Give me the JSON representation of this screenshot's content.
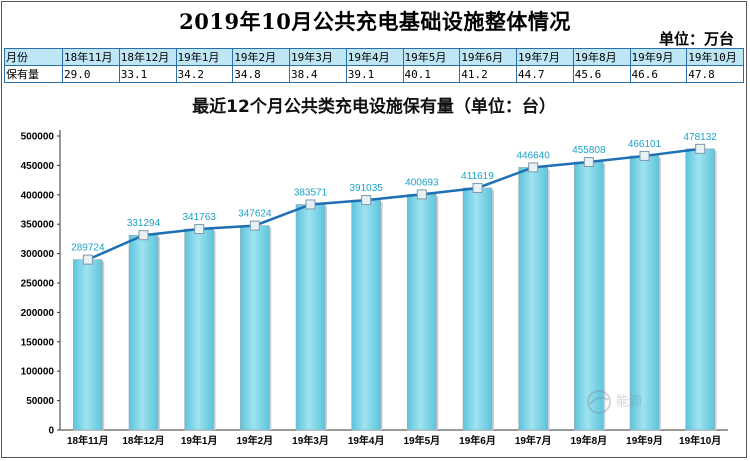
{
  "header": {
    "title": "2019年10月公共充电基础设施整体情况",
    "unit_note": "单位：万台"
  },
  "summary_table": {
    "row_label_month": "月份",
    "row_label_value": "保有量",
    "months": [
      "18年11月",
      "18年12月",
      "19年1月",
      "19年2月",
      "19年3月",
      "19年4月",
      "19年5月",
      "19年6月",
      "19年7月",
      "19年8月",
      "19年9月",
      "19年10月"
    ],
    "values": [
      "29.0",
      "33.1",
      "34.2",
      "34.8",
      "38.4",
      "39.1",
      "40.1",
      "41.2",
      "44.7",
      "45.6",
      "46.6",
      "47.8"
    ]
  },
  "chart_data": {
    "type": "bar",
    "title": "最近12个月公共类充电设施保有量（单位：台）",
    "categories": [
      "18年11月",
      "18年12月",
      "19年1月",
      "19年2月",
      "19年3月",
      "19年4月",
      "19年5月",
      "19年6月",
      "19年7月",
      "19年8月",
      "19年9月",
      "19年10月"
    ],
    "values": [
      289724,
      331294,
      341763,
      347624,
      383571,
      391035,
      400693,
      411619,
      446640,
      455808,
      466101,
      478132
    ],
    "overlay": "line",
    "ylim": [
      0,
      500000
    ],
    "yticks": [
      0,
      50000,
      100000,
      150000,
      200000,
      250000,
      300000,
      350000,
      400000,
      450000,
      500000
    ],
    "data_labels": [
      "289724",
      "331294",
      "341763",
      "347624",
      "383571",
      "391035",
      "400693",
      "411619",
      "446640",
      "455808",
      "466101",
      "478132"
    ],
    "xlabel": "",
    "ylabel": "",
    "grid": false,
    "colors": {
      "bar": "#7fd4e6",
      "bar_edge": "#9aa8b0",
      "line": "#1f6fb4",
      "marker": "#e8f1f5",
      "label": "#1aa3c9"
    }
  },
  "watermark": {
    "text": "能源",
    "icon": "globe-logo-icon"
  }
}
